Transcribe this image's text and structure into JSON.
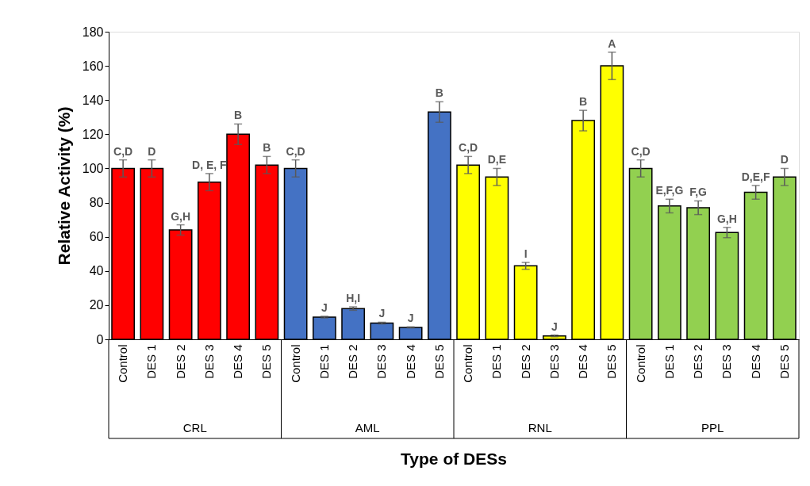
{
  "chart_data": {
    "type": "bar",
    "xlabel": "Type of DESs",
    "ylabel": "Relative Activity (%)",
    "categories": [
      "Control",
      "DES 1",
      "DES 2",
      "DES 3",
      "DES 4",
      "DES 5",
      "Control",
      "DES 1",
      "DES 2",
      "DES 3",
      "DES 4",
      "DES 5",
      "Control",
      "DES 1",
      "DES 2",
      "DES 3",
      "DES 4",
      "DES 5",
      "Control",
      "DES 1",
      "DES 2",
      "DES 3",
      "DES 4",
      "DES 5"
    ],
    "series": [
      {
        "color": "#ff0000",
        "values": [
          100,
          100,
          64,
          92,
          120,
          102,
          null,
          null,
          null,
          null,
          null,
          null,
          null,
          null,
          null,
          null,
          null,
          null,
          null,
          null,
          null,
          null,
          null,
          null
        ],
        "errors": [
          5,
          5,
          3,
          5,
          6,
          5,
          null,
          null,
          null,
          null,
          null,
          null,
          null,
          null,
          null,
          null,
          null,
          null,
          null,
          null,
          null,
          null,
          null,
          null
        ],
        "value_labels": [
          "C,D",
          "D",
          "G,H",
          "D, E, F",
          "B",
          "B",
          null,
          null,
          null,
          null,
          null,
          null,
          null,
          null,
          null,
          null,
          null,
          null,
          null,
          null,
          null,
          null,
          null,
          null
        ]
      },
      {
        "color": "#4472c4",
        "values": [
          null,
          null,
          null,
          null,
          null,
          null,
          100,
          13,
          18,
          9.5,
          7,
          133,
          null,
          null,
          null,
          null,
          null,
          null,
          null,
          null,
          null,
          null,
          null,
          null
        ],
        "errors": [
          null,
          null,
          null,
          null,
          null,
          null,
          5,
          0.5,
          1,
          0.5,
          0.3,
          6,
          null,
          null,
          null,
          null,
          null,
          null,
          null,
          null,
          null,
          null,
          null,
          null
        ],
        "value_labels": [
          null,
          null,
          null,
          null,
          null,
          null,
          "C,D",
          "J",
          "H,I",
          "J",
          "J",
          "B",
          null,
          null,
          null,
          null,
          null,
          null,
          null,
          null,
          null,
          null,
          null,
          null
        ]
      },
      {
        "color": "#ffff00",
        "values": [
          null,
          null,
          null,
          null,
          null,
          null,
          null,
          null,
          null,
          null,
          null,
          null,
          102,
          95,
          43,
          2,
          128,
          160,
          null,
          null,
          null,
          null,
          null,
          null
        ],
        "errors": [
          null,
          null,
          null,
          null,
          null,
          null,
          null,
          null,
          null,
          null,
          null,
          null,
          5,
          5,
          2,
          0.5,
          6,
          8,
          null,
          null,
          null,
          null,
          null,
          null
        ],
        "value_labels": [
          null,
          null,
          null,
          null,
          null,
          null,
          null,
          null,
          null,
          null,
          null,
          null,
          "C,D",
          "D,E",
          "I",
          "J",
          "B",
          "A",
          null,
          null,
          null,
          null,
          null,
          null
        ]
      },
      {
        "color": "#92d050",
        "values": [
          null,
          null,
          null,
          null,
          null,
          null,
          null,
          null,
          null,
          null,
          null,
          null,
          null,
          null,
          null,
          null,
          null,
          null,
          100,
          78,
          77,
          62.5,
          86,
          95
        ],
        "errors": [
          null,
          null,
          null,
          null,
          null,
          null,
          null,
          null,
          null,
          null,
          null,
          null,
          null,
          null,
          null,
          null,
          null,
          null,
          5,
          4,
          4,
          3,
          4,
          5
        ],
        "value_labels": [
          null,
          null,
          null,
          null,
          null,
          null,
          null,
          null,
          null,
          null,
          null,
          null,
          null,
          null,
          null,
          null,
          null,
          null,
          "C,D",
          "E,F,G",
          "F,G",
          "G,H",
          "D,E,F",
          "D"
        ]
      }
    ],
    "ylim": [
      0,
      180
    ],
    "yticks": [
      0,
      20,
      40,
      60,
      80,
      100,
      120,
      140,
      160,
      180
    ],
    "grid": false,
    "annotations": [
      "CRL",
      "AML",
      "RNL",
      "PPL"
    ]
  }
}
